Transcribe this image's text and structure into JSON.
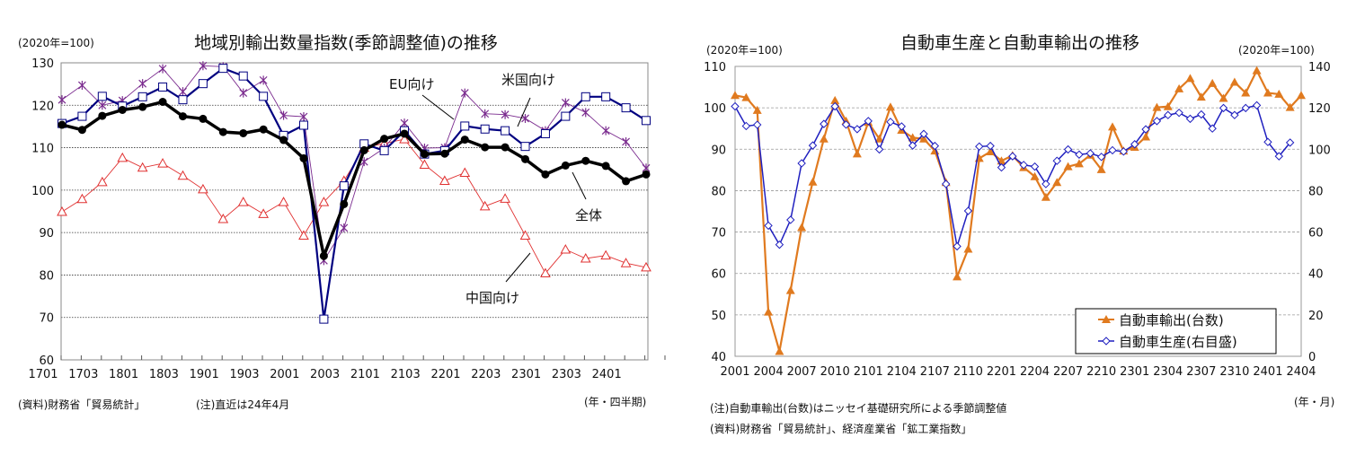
{
  "chart_data": [
    {
      "type": "line",
      "title": "地域別輸出数量指数(季節調整値)の推移",
      "ylabel": "(2020年=100)",
      "xlabel": "(年・四半期)",
      "ylim": [
        60,
        130
      ],
      "yticks": [
        60,
        70,
        80,
        90,
        100,
        110,
        120,
        130
      ],
      "grid": true,
      "categories": [
        "1701",
        "1702",
        "1703",
        "1704",
        "1801",
        "1802",
        "1803",
        "1804",
        "1901",
        "1902",
        "1903",
        "1904",
        "2001",
        "2002",
        "2003",
        "2004",
        "2101",
        "2102",
        "2103",
        "2104",
        "2201",
        "2202",
        "2203",
        "2204",
        "2301",
        "2302",
        "2303",
        "2304",
        "2401",
        "2402"
      ],
      "tick_labels": [
        "1701",
        "1703",
        "1801",
        "1803",
        "1901",
        "1903",
        "2001",
        "2003",
        "2101",
        "2103",
        "2201",
        "2203",
        "2301",
        "2303",
        "2401"
      ],
      "series": [
        {
          "name": "全体",
          "color": "#000000",
          "marker": "circle",
          "values": [
            115.4,
            114.2,
            117.5,
            118.9,
            119.6,
            120.8,
            117.4,
            116.8,
            113.7,
            113.4,
            114.3,
            111.8,
            107.5,
            84.5,
            96.7,
            109.4,
            112.1,
            113.3,
            108.5,
            108.6,
            111.9,
            110.1,
            110.1,
            107.3,
            103.7,
            105.8,
            106.9,
            105.7,
            102.1,
            103.7
          ]
        },
        {
          "name": "米国向け",
          "color": "#000080",
          "marker": "square",
          "values": [
            115.7,
            117.4,
            122.1,
            119.8,
            122.0,
            124.3,
            121.3,
            125.1,
            128.7,
            126.9,
            122.1,
            112.9,
            115.3,
            69.6,
            101.0,
            110.9,
            109.3,
            114.0,
            108.5,
            109.3,
            115.1,
            114.4,
            114.0,
            110.3,
            113.3,
            117.4,
            122.0,
            122.0,
            119.4,
            116.4
          ]
        },
        {
          "name": "EU向け",
          "color": "#7B2C8F",
          "marker": "x",
          "values": [
            121.3,
            124.7,
            120.0,
            121.1,
            125.1,
            128.6,
            123.2,
            129.3,
            129.1,
            122.9,
            125.9,
            117.6,
            117.3,
            83.4,
            91.1,
            106.7,
            109.9,
            115.8,
            109.9,
            110.0,
            122.9,
            118.0,
            117.8,
            116.9,
            114.0,
            120.6,
            118.3,
            114.0,
            111.4,
            105.2
          ]
        },
        {
          "name": "中国向け",
          "color": "#E03030",
          "marker": "triangle-open",
          "values": [
            94.9,
            97.9,
            101.9,
            107.6,
            105.3,
            106.3,
            103.4,
            100.2,
            93.2,
            97.2,
            94.4,
            97.2,
            89.3,
            97.2,
            102.2,
            110.0,
            111.0,
            112.0,
            106.0,
            102.2,
            104.1,
            96.2,
            98.0,
            89.3,
            80.4,
            86.0,
            83.9,
            84.6,
            82.8,
            81.8
          ]
        }
      ],
      "source": "(資料)財務省「貿易統計」",
      "note": "(注)直近は24年4月"
    },
    {
      "type": "line",
      "title": "自動車生産と自動車輸出の推移",
      "ylabel": "(2020年=100)",
      "ylabel_right": "(2020年=100)",
      "xlabel": "(年・月)",
      "ylim": [
        40,
        110
      ],
      "ylim_right": [
        0,
        140
      ],
      "yticks": [
        40,
        50,
        60,
        70,
        80,
        90,
        100,
        110
      ],
      "yticks_right": [
        0,
        20,
        40,
        60,
        80,
        100,
        120,
        140
      ],
      "grid": true,
      "legend": "bottom-right",
      "tick_labels": [
        "2001",
        "2004",
        "2007",
        "2010",
        "2101",
        "2104",
        "2107",
        "2110",
        "2201",
        "2204",
        "2207",
        "2210",
        "2301",
        "2304",
        "2307",
        "2310",
        "2401",
        "2404"
      ],
      "x_start": "2001",
      "x_end": "2404",
      "series": [
        {
          "name": "自動車輸出(台数)",
          "axis": "left",
          "color": "#E07A1F",
          "marker": "triangle",
          "values": [
            103.0,
            102.5,
            99.4,
            50.7,
            41.2,
            55.9,
            71.1,
            82.1,
            92.5,
            101.8,
            96.8,
            88.9,
            96.5,
            92.5,
            100.2,
            94.6,
            92.8,
            92.5,
            89.6,
            82.0,
            59.2,
            65.9,
            87.8,
            89.4,
            87.2,
            88.5,
            85.6,
            83.4,
            78.4,
            82.0,
            85.8,
            86.5,
            88.6,
            85.1,
            95.4,
            89.6,
            90.5,
            93.0,
            100.1,
            100.3,
            104.6,
            107.1,
            102.6,
            105.9,
            102.3,
            106.2,
            103.6,
            109.0,
            103.6,
            103.3,
            100.1,
            103.0
          ]
        },
        {
          "name": "自動車生産(右目盛)",
          "axis": "right",
          "color": "#1F1FBF",
          "marker": "diamond-open",
          "values": [
            120.7,
            111.2,
            111.8,
            63.1,
            53.9,
            65.9,
            93.2,
            101.8,
            112.2,
            120.7,
            111.9,
            109.7,
            113.6,
            99.9,
            113.2,
            111.0,
            101.8,
            107.4,
            101.6,
            83.2,
            53.1,
            70.2,
            101.3,
            101.6,
            91.2,
            96.6,
            92.4,
            91.6,
            83.2,
            94.4,
            99.9,
            97.4,
            98.0,
            96.3,
            99.5,
            98.9,
            102.4,
            109.6,
            113.6,
            116.5,
            117.6,
            114.7,
            116.8,
            110.0,
            119.9,
            116.5,
            119.9,
            121.2,
            103.5,
            96.6,
            103.2
          ]
        }
      ],
      "note": "(注)自動車輸出(台数)はニッセイ基礎研究所による季節調整値",
      "source": "(資料)財務省「貿易統計」、経済産業省「鉱工業指数」"
    }
  ]
}
